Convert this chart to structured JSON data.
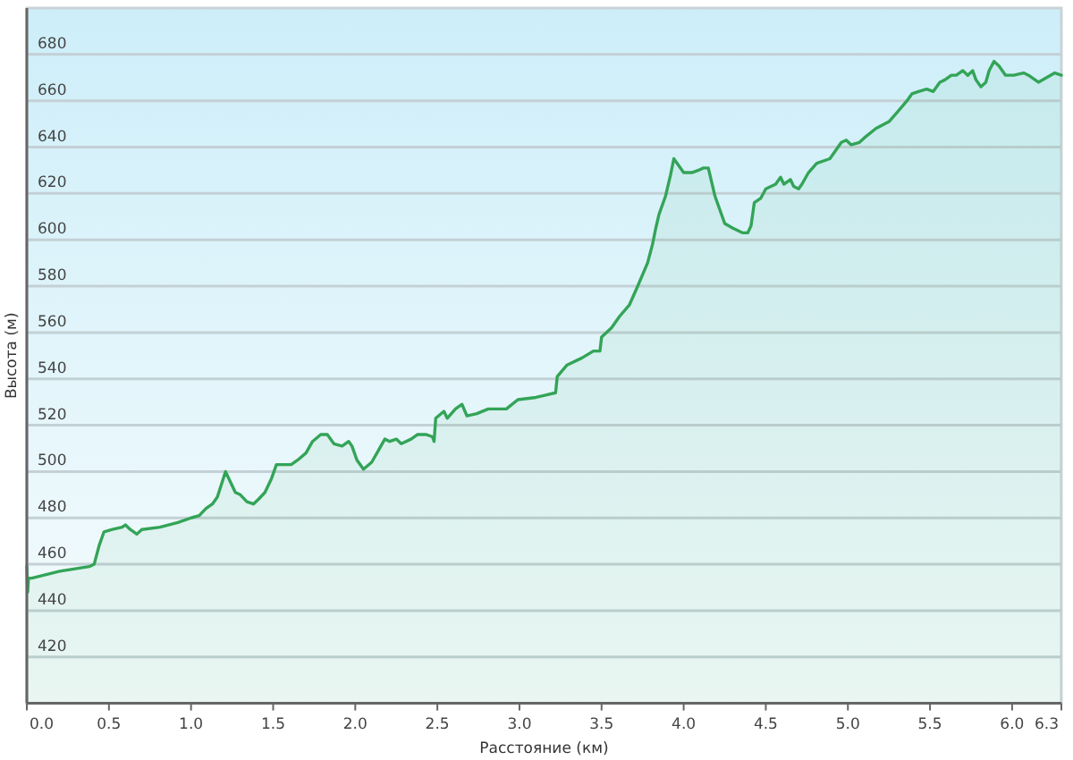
{
  "chart_data": {
    "type": "area",
    "xlabel": "Расстояние (км)",
    "ylabel": "Высота (м)",
    "xlim": [
      0,
      6.3
    ],
    "ylim": [
      400,
      700
    ],
    "xticks": [
      {
        "value": 0,
        "label": "0.0"
      },
      0.5,
      {
        "value": 1,
        "label": "1.0"
      },
      1.5,
      {
        "value": 2,
        "label": "2.0"
      },
      2.5,
      {
        "value": 3,
        "label": "3.0"
      },
      3.5,
      {
        "value": 4,
        "label": "4.0"
      },
      4.5,
      {
        "value": 5,
        "label": "5.0"
      },
      5.5,
      {
        "value": 6,
        "label": "6.0"
      },
      6.3
    ],
    "yticks": [
      420,
      440,
      460,
      480,
      500,
      520,
      540,
      560,
      580,
      600,
      620,
      640,
      660,
      680
    ],
    "grid": "y",
    "x": [
      0,
      0.005,
      0.01,
      0.03,
      0.2,
      0.38,
      0.41,
      0.44,
      0.47,
      0.52,
      0.58,
      0.6,
      0.63,
      0.67,
      0.7,
      0.81,
      0.92,
      1.0,
      1.05,
      1.09,
      1.13,
      1.16,
      1.21,
      1.25,
      1.27,
      1.3,
      1.34,
      1.38,
      1.41,
      1.45,
      1.49,
      1.52,
      1.61,
      1.65,
      1.7,
      1.74,
      1.79,
      1.83,
      1.87,
      1.92,
      1.96,
      1.98,
      2.01,
      2.05,
      2.1,
      2.14,
      2.18,
      2.21,
      2.25,
      2.28,
      2.34,
      2.38,
      2.43,
      2.47,
      2.48,
      2.49,
      2.54,
      2.56,
      2.61,
      2.65,
      2.68,
      2.74,
      2.81,
      2.88,
      2.92,
      2.99,
      3.1,
      3.16,
      3.22,
      3.23,
      3.29,
      3.38,
      3.45,
      3.49,
      3.5,
      3.56,
      3.61,
      3.67,
      3.72,
      3.78,
      3.81,
      3.83,
      3.85,
      3.89,
      3.92,
      3.94,
      3.97,
      4.0,
      4.05,
      4.09,
      4.12,
      4.15,
      4.19,
      4.25,
      4.3,
      4.36,
      4.39,
      4.41,
      4.43,
      4.47,
      4.5,
      4.56,
      4.59,
      4.61,
      4.65,
      4.67,
      4.7,
      4.72,
      4.76,
      4.81,
      4.89,
      4.92,
      4.96,
      4.99,
      5.02,
      5.07,
      5.1,
      5.17,
      5.25,
      5.3,
      5.36,
      5.39,
      5.43,
      5.48,
      5.52,
      5.56,
      5.59,
      5.63,
      5.66,
      5.7,
      5.73,
      5.76,
      5.78,
      5.81,
      5.84,
      5.86,
      5.89,
      5.92,
      5.96,
      6.01,
      6.07,
      6.1,
      6.16,
      6.21,
      6.26,
      6.3
    ],
    "series": [
      {
        "color": "#33a457",
        "values": [
          459,
          448,
          454,
          454,
          457,
          459,
          460,
          468,
          474,
          475,
          476,
          477,
          475,
          473,
          475,
          476,
          478,
          480,
          481,
          484,
          486,
          489,
          500,
          494,
          491,
          490,
          487,
          486,
          488,
          491,
          497,
          503,
          503,
          505,
          508,
          513,
          516,
          516,
          512,
          511,
          513,
          511,
          505,
          501,
          504,
          509,
          514,
          513,
          514,
          512,
          514,
          516,
          516,
          515,
          513,
          523,
          526,
          523,
          527,
          529,
          524,
          525,
          527,
          527,
          527,
          531,
          532,
          533,
          534,
          541,
          546,
          549,
          552,
          552,
          558,
          562,
          567,
          572,
          580,
          590,
          598,
          605,
          611,
          619,
          628,
          635,
          632,
          629,
          629,
          630,
          631,
          631,
          619,
          607,
          605,
          603,
          603,
          606,
          616,
          618,
          622,
          624,
          627,
          624,
          626,
          623,
          622,
          624,
          629,
          633,
          635,
          638,
          642,
          643,
          641,
          642,
          644,
          648,
          651,
          655,
          660,
          663,
          664,
          665,
          664,
          668,
          669,
          671,
          671,
          673,
          671,
          673,
          669,
          666,
          668,
          673,
          677,
          675,
          671,
          671,
          672,
          671,
          668,
          670,
          672,
          671
        ]
      }
    ]
  }
}
